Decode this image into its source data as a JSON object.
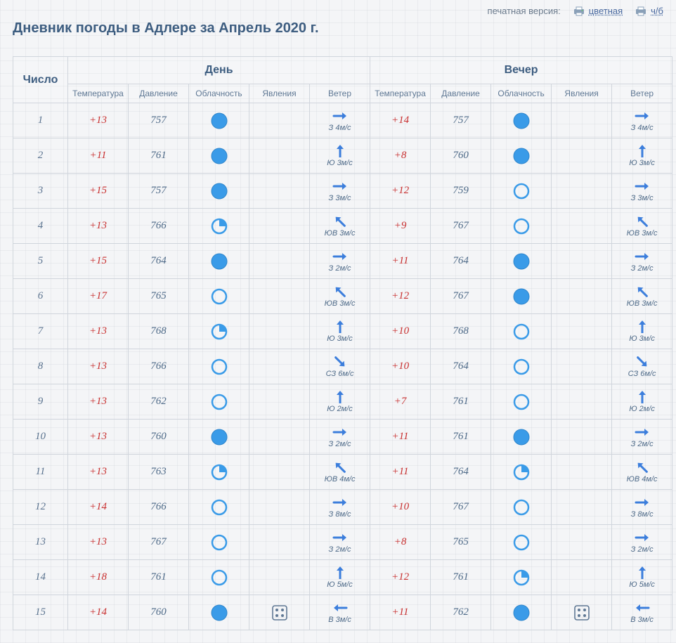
{
  "topbar": {
    "print_label": "печатная версия:",
    "link_color": "цветная",
    "link_bw": "ч/б"
  },
  "title": "Дневник погоды в Адлере за Апрель 2020 г.",
  "headers": {
    "date": "Число",
    "day_group": "День",
    "eve_group": "Вечер",
    "sub": [
      "Температура",
      "Давление",
      "Облачность",
      "Явления",
      "Ветер"
    ]
  },
  "palette": {
    "cloud_fill": "#3a9be8",
    "cloud_stroke": "#2f86cc",
    "arrow": "#3c7edc",
    "dice_stroke": "#5f7894"
  },
  "wind_directions": {
    "E": {
      "angle": 0,
      "prefix": "З"
    },
    "NE": {
      "angle": -45,
      "prefix": "ЮВ"
    },
    "N": {
      "angle": -90,
      "prefix": "Ю"
    },
    "NW": {
      "angle": -135,
      "prefix": "ЮВ"
    },
    "W": {
      "angle": 180,
      "prefix": "В"
    },
    "SE": {
      "angle": 45,
      "prefix": "СЗ"
    }
  },
  "cloud_types": [
    "full",
    "empty",
    "quarter"
  ],
  "rows": [
    {
      "n": 1,
      "d": {
        "t": "+13",
        "p": "757",
        "c": "full",
        "ph": null,
        "w": {
          "dir": "E",
          "s": 4
        }
      },
      "e": {
        "t": "+14",
        "p": "757",
        "c": "full",
        "ph": null,
        "w": {
          "dir": "E",
          "s": 4
        }
      }
    },
    {
      "n": 2,
      "d": {
        "t": "+11",
        "p": "761",
        "c": "full",
        "ph": null,
        "w": {
          "dir": "N",
          "s": 3
        }
      },
      "e": {
        "t": "+8",
        "p": "760",
        "c": "full",
        "ph": null,
        "w": {
          "dir": "N",
          "s": 3
        }
      }
    },
    {
      "n": 3,
      "d": {
        "t": "+15",
        "p": "757",
        "c": "full",
        "ph": null,
        "w": {
          "dir": "E",
          "s": 3
        }
      },
      "e": {
        "t": "+12",
        "p": "759",
        "c": "empty",
        "ph": null,
        "w": {
          "dir": "E",
          "s": 3
        }
      }
    },
    {
      "n": 4,
      "d": {
        "t": "+13",
        "p": "766",
        "c": "quarter",
        "ph": null,
        "w": {
          "dir": "NW",
          "s": 3
        }
      },
      "e": {
        "t": "+9",
        "p": "767",
        "c": "empty",
        "ph": null,
        "w": {
          "dir": "NW",
          "s": 3
        }
      }
    },
    {
      "n": 5,
      "d": {
        "t": "+15",
        "p": "764",
        "c": "full",
        "ph": null,
        "w": {
          "dir": "E",
          "s": 2
        }
      },
      "e": {
        "t": "+11",
        "p": "764",
        "c": "full",
        "ph": null,
        "w": {
          "dir": "E",
          "s": 2
        }
      }
    },
    {
      "n": 6,
      "d": {
        "t": "+17",
        "p": "765",
        "c": "empty",
        "ph": null,
        "w": {
          "dir": "NW",
          "s": 3
        }
      },
      "e": {
        "t": "+12",
        "p": "767",
        "c": "full",
        "ph": null,
        "w": {
          "dir": "NW",
          "s": 3
        }
      }
    },
    {
      "n": 7,
      "d": {
        "t": "+13",
        "p": "768",
        "c": "quarter",
        "ph": null,
        "w": {
          "dir": "N",
          "s": 3
        }
      },
      "e": {
        "t": "+10",
        "p": "768",
        "c": "empty",
        "ph": null,
        "w": {
          "dir": "N",
          "s": 3
        }
      }
    },
    {
      "n": 8,
      "d": {
        "t": "+13",
        "p": "766",
        "c": "empty",
        "ph": null,
        "w": {
          "dir": "SE",
          "s": 6
        }
      },
      "e": {
        "t": "+10",
        "p": "764",
        "c": "empty",
        "ph": null,
        "w": {
          "dir": "SE",
          "s": 6
        }
      }
    },
    {
      "n": 9,
      "d": {
        "t": "+13",
        "p": "762",
        "c": "empty",
        "ph": null,
        "w": {
          "dir": "N",
          "s": 2
        }
      },
      "e": {
        "t": "+7",
        "p": "761",
        "c": "empty",
        "ph": null,
        "w": {
          "dir": "N",
          "s": 2
        }
      }
    },
    {
      "n": 10,
      "d": {
        "t": "+13",
        "p": "760",
        "c": "full",
        "ph": null,
        "w": {
          "dir": "E",
          "s": 2
        }
      },
      "e": {
        "t": "+11",
        "p": "761",
        "c": "full",
        "ph": null,
        "w": {
          "dir": "E",
          "s": 2
        }
      }
    },
    {
      "n": 11,
      "d": {
        "t": "+13",
        "p": "763",
        "c": "quarter",
        "ph": null,
        "w": {
          "dir": "NW",
          "s": 4
        }
      },
      "e": {
        "t": "+11",
        "p": "764",
        "c": "quarter",
        "ph": null,
        "w": {
          "dir": "NW",
          "s": 4
        }
      }
    },
    {
      "n": 12,
      "d": {
        "t": "+14",
        "p": "766",
        "c": "empty",
        "ph": null,
        "w": {
          "dir": "E",
          "s": 8
        }
      },
      "e": {
        "t": "+10",
        "p": "767",
        "c": "empty",
        "ph": null,
        "w": {
          "dir": "E",
          "s": 8
        }
      }
    },
    {
      "n": 13,
      "d": {
        "t": "+13",
        "p": "767",
        "c": "empty",
        "ph": null,
        "w": {
          "dir": "E",
          "s": 2
        }
      },
      "e": {
        "t": "+8",
        "p": "765",
        "c": "empty",
        "ph": null,
        "w": {
          "dir": "E",
          "s": 2
        }
      }
    },
    {
      "n": 14,
      "d": {
        "t": "+18",
        "p": "761",
        "c": "empty",
        "ph": null,
        "w": {
          "dir": "N",
          "s": 5
        }
      },
      "e": {
        "t": "+12",
        "p": "761",
        "c": "quarter",
        "ph": null,
        "w": {
          "dir": "N",
          "s": 5
        }
      }
    },
    {
      "n": 15,
      "d": {
        "t": "+14",
        "p": "760",
        "c": "full",
        "ph": "dice",
        "w": {
          "dir": "W",
          "s": 3
        }
      },
      "e": {
        "t": "+11",
        "p": "762",
        "c": "full",
        "ph": "dice",
        "w": {
          "dir": "W",
          "s": 3
        }
      }
    }
  ]
}
